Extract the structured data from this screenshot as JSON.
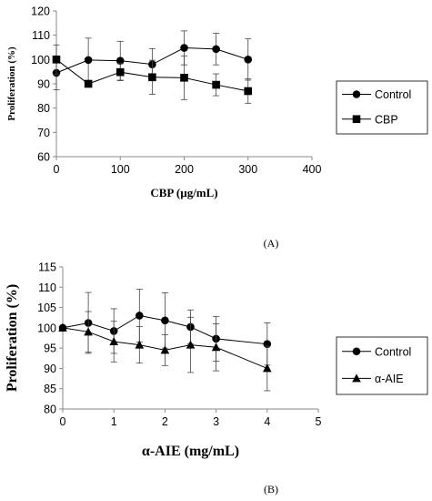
{
  "chart_data": [
    {
      "panel_label": "(A)",
      "type": "line",
      "xlabel": "CBP (µg/mL)",
      "ylabel": "Proliferation (%)",
      "xlim": [
        0,
        400
      ],
      "ylim": [
        60,
        120
      ],
      "x_ticks": [
        "0",
        "100",
        "200",
        "300",
        "400"
      ],
      "y_ticks": [
        "60",
        "70",
        "80",
        "90",
        "100",
        "110",
        "120"
      ],
      "legend_position": "right",
      "grid": false,
      "series": [
        {
          "name": "Control",
          "marker": "circle",
          "x": [
            0,
            50,
            100,
            150,
            200,
            250,
            300
          ],
          "y": [
            94.5,
            99.8,
            99.5,
            98.0,
            104.8,
            104.3,
            100.0
          ],
          "err": [
            7.0,
            9.0,
            8.0,
            6.5,
            7.0,
            6.5,
            8.5
          ]
        },
        {
          "name": "CBP",
          "marker": "square",
          "x": [
            0,
            50,
            100,
            150,
            200,
            250,
            300
          ],
          "y": [
            100.0,
            90.0,
            94.8,
            92.7,
            92.5,
            89.6,
            87.0
          ],
          "err": [
            6.0,
            0,
            3.5,
            7.0,
            9.0,
            4.5,
            5.0
          ]
        }
      ]
    },
    {
      "panel_label": "(B)",
      "type": "line",
      "xlabel": "α-AIE (mg/mL)",
      "ylabel": "Proliferation (%)",
      "xlim": [
        0,
        5
      ],
      "ylim": [
        80,
        115
      ],
      "x_ticks": [
        "0",
        "1",
        "2",
        "3",
        "4",
        "5"
      ],
      "y_ticks": [
        "80",
        "85",
        "90",
        "95",
        "100",
        "105",
        "110",
        "115"
      ],
      "legend_position": "right",
      "grid": false,
      "series": [
        {
          "name": "Control",
          "marker": "circle",
          "x": [
            0,
            0.5,
            1,
            1.5,
            2,
            2.5,
            3,
            4
          ],
          "y": [
            100.0,
            101.2,
            99.2,
            103.0,
            101.8,
            100.2,
            97.3,
            96.0
          ],
          "err": [
            0,
            7.5,
            5.5,
            6.5,
            6.8,
            4.2,
            5.5,
            5.2
          ]
        },
        {
          "name": "α-AIE",
          "marker": "triangle",
          "x": [
            0,
            0.5,
            1,
            1.5,
            2,
            2.5,
            3,
            4
          ],
          "y": [
            100.0,
            99.0,
            96.6,
            95.8,
            94.5,
            95.8,
            95.2,
            90.0
          ],
          "err": [
            0,
            5.0,
            5.0,
            4.5,
            3.8,
            6.8,
            5.8,
            5.5
          ]
        }
      ]
    }
  ]
}
